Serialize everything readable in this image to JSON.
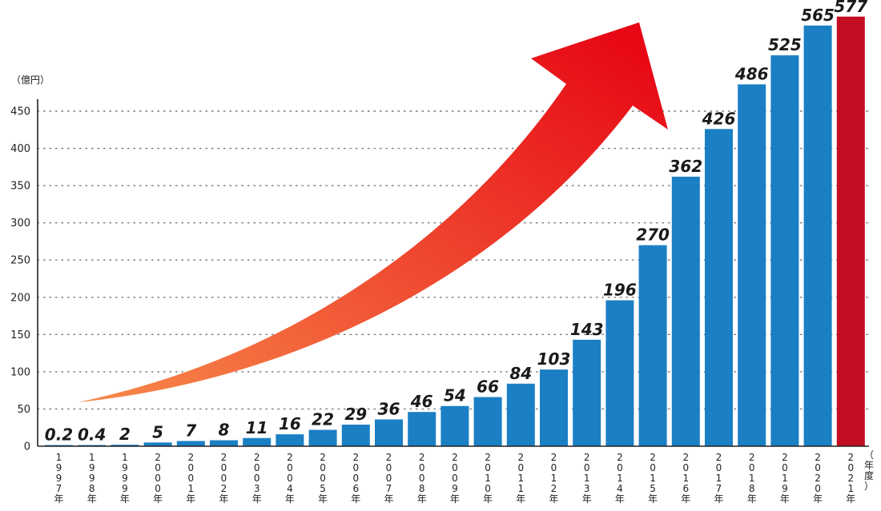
{
  "chart_data": {
    "type": "bar",
    "ylabel": "（億円）",
    "xlabel": "（年度）",
    "ylim": [
      0,
      470
    ],
    "yticks": [
      0,
      50,
      100,
      150,
      200,
      250,
      300,
      350,
      400,
      450
    ],
    "grid": "horizontal-dotted",
    "categories": [
      "1997年",
      "1998年",
      "1999年",
      "2000年",
      "2001年",
      "2002年",
      "2003年",
      "2004年",
      "2005年",
      "2006年",
      "2007年",
      "2008年",
      "2009年",
      "2010年",
      "2011年",
      "2012年",
      "2013年",
      "2014年",
      "2015年",
      "2016年",
      "2017年",
      "2018年",
      "2019年",
      "2020年",
      "2021年"
    ],
    "values": [
      0.2,
      0.4,
      2,
      5,
      7,
      8,
      11,
      16,
      22,
      29,
      36,
      46,
      54,
      66,
      84,
      103,
      143,
      196,
      270,
      362,
      426,
      486,
      525,
      565,
      577
    ],
    "data_labels": [
      "0.2",
      "0.4",
      "2",
      "5",
      "7",
      "8",
      "11",
      "16",
      "22",
      "29",
      "36",
      "46",
      "54",
      "66",
      "84",
      "103",
      "143",
      "196",
      "270",
      "362",
      "426",
      "486",
      "525",
      "565",
      "577"
    ],
    "colors": {
      "bar": "#1b7fc4",
      "highlight": "#c30d23",
      "arrow_start": "#f7894a",
      "arrow_end": "#e60012"
    },
    "highlight_index": 24
  }
}
